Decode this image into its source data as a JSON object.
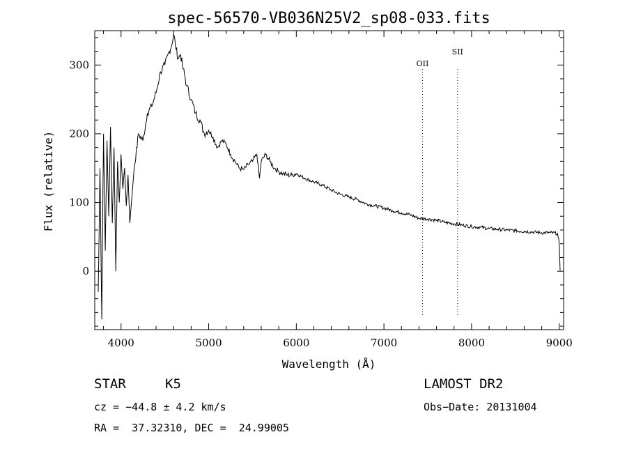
{
  "chart_data": {
    "type": "line",
    "title": "spec-56570-VB036N25V2_sp08-033.fits",
    "xlabel": "Wavelength (Å)",
    "ylabel": "Flux (relative)",
    "xlim": [
      3700,
      9050
    ],
    "ylim": [
      -85,
      350
    ],
    "xticks": [
      4000,
      5000,
      6000,
      7000,
      8000,
      9000
    ],
    "yticks": [
      0,
      100,
      200,
      300
    ],
    "grid": false,
    "spectral_lines": [
      {
        "label": "OII",
        "wavelength": 7440
      },
      {
        "label": "SII",
        "wavelength": 7840
      }
    ],
    "series": [
      {
        "x": [
          3740,
          3760,
          3780,
          3800,
          3820,
          3840,
          3860,
          3880,
          3900,
          3920,
          3940,
          3960,
          3980,
          4000,
          4020,
          4040,
          4060,
          4080,
          4100,
          4150,
          4200,
          4250,
          4300,
          4350,
          4400,
          4450,
          4500,
          4550,
          4580,
          4600,
          4620,
          4650,
          4680,
          4700,
          4750,
          4800,
          4850,
          4900,
          4950,
          5000,
          5050,
          5100,
          5150,
          5200,
          5250,
          5300,
          5350,
          5400,
          5450,
          5500,
          5550,
          5580,
          5600,
          5650,
          5700,
          5750,
          5800,
          5850,
          5900,
          5950,
          6000,
          6100,
          6200,
          6300,
          6400,
          6500,
          6600,
          6700,
          6800,
          6900,
          7000,
          7100,
          7200,
          7300,
          7400,
          7500,
          7600,
          7700,
          7800,
          7900,
          8000,
          8100,
          8200,
          8300,
          8400,
          8500,
          8600,
          8700,
          8800,
          8900,
          8980,
          9000,
          9010
        ],
        "y": [
          -30,
          150,
          -70,
          200,
          30,
          190,
          80,
          210,
          70,
          180,
          0,
          160,
          100,
          170,
          120,
          150,
          95,
          140,
          70,
          150,
          200,
          190,
          230,
          240,
          260,
          290,
          300,
          320,
          330,
          345,
          330,
          310,
          315,
          300,
          270,
          250,
          230,
          220,
          200,
          205,
          195,
          180,
          190,
          185,
          170,
          160,
          150,
          148,
          155,
          160,
          170,
          135,
          160,
          170,
          160,
          150,
          145,
          142,
          140,
          140,
          142,
          135,
          130,
          125,
          118,
          112,
          108,
          104,
          98,
          95,
          92,
          88,
          85,
          82,
          77,
          76,
          74,
          71,
          69,
          67,
          65,
          64,
          62,
          61,
          60,
          59,
          58,
          57,
          56,
          56,
          55,
          40,
          1
        ]
      }
    ]
  },
  "info": {
    "object_type": "STAR",
    "subclass": "K5",
    "cz": "cz = −44.8 ± 4.2 km/s",
    "coords": "RA =  37.32310, DEC =  24.99005",
    "survey": "LAMOST DR2",
    "obs_date": "Obs−Date: 20131004"
  }
}
